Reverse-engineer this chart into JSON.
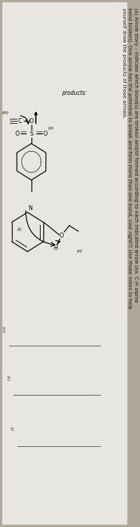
{
  "paper_color": "#dcdad6",
  "paper_color2": "#e8e6e2",
  "bg_color": "#b0a898",
  "text_color": "#1a1a1a",
  "instruction_text": "(a) Arrow story – indicate which bond(s) are broken and/or formed according to each indicated arrow (ex. C-H sigma\nbond broken). One arrow has the potential to break and form more than one bond, cool right?! Use those notes to help\nyourself draw the products of those arrows.",
  "products_label": "products:",
  "answer_labels": [
    "(i)",
    "(ii)",
    "(iii)"
  ],
  "font_size_text": 5.2,
  "font_size_label": 5.5,
  "font_size_atom": 5.8,
  "font_size_small": 4.5
}
